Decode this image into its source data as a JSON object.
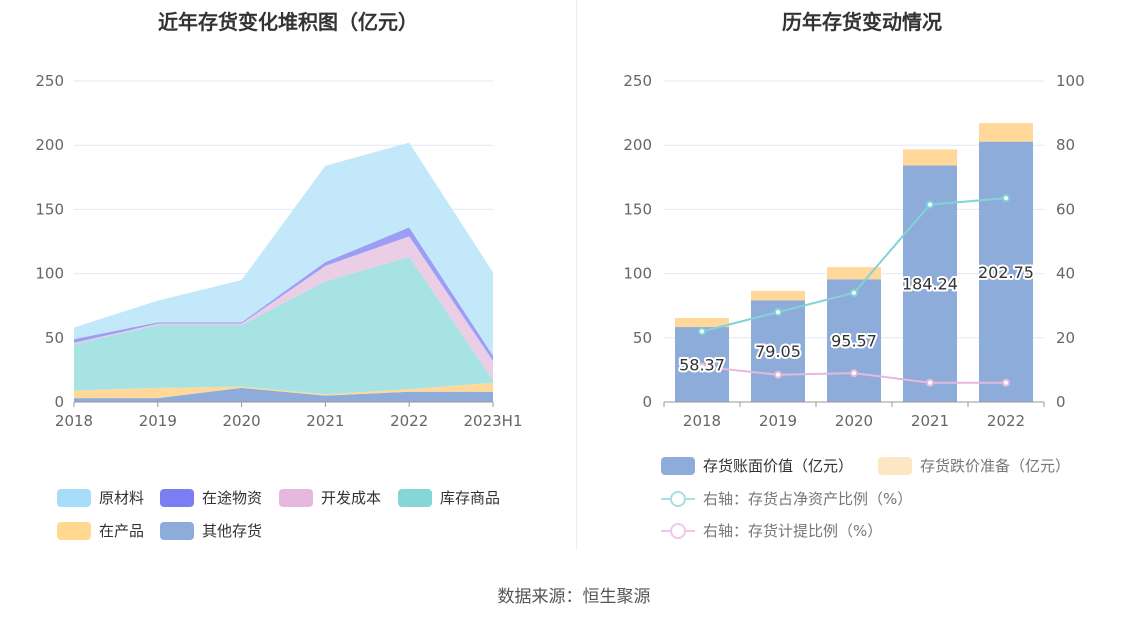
{
  "source_text": "数据来源：恒生聚源",
  "chart_data": [
    {
      "type": "area",
      "stacked": true,
      "title": "近年存货变化堆积图（亿元）",
      "categories": [
        "2018",
        "2019",
        "2020",
        "2021",
        "2022",
        "2023H1"
      ],
      "ylim": [
        0,
        250
      ],
      "yticks": [
        0,
        50,
        100,
        150,
        200,
        250
      ],
      "grid": true,
      "legend_position": "bottom",
      "series": [
        {
          "name": "其他存货",
          "color": "#8eacd9",
          "values": [
            3,
            3,
            11,
            5,
            8,
            8
          ]
        },
        {
          "name": "在产品",
          "color": "#ffd89a",
          "values": [
            6,
            8,
            1,
            1,
            2,
            7
          ]
        },
        {
          "name": "库存商品",
          "color": "#a8e3e4",
          "values": [
            36,
            49,
            48,
            88,
            103,
            2
          ]
        },
        {
          "name": "开发成本",
          "color": "#ebcde6",
          "values": [
            1,
            1,
            1,
            12,
            16,
            15
          ]
        },
        {
          "name": "在途物资",
          "color": "#9b9ef4",
          "values": [
            3,
            1,
            1,
            3,
            7,
            4
          ]
        },
        {
          "name": "原材料",
          "color": "#c3e8fa",
          "values": [
            9,
            17,
            33,
            75,
            66,
            65
          ]
        }
      ],
      "legend": [
        {
          "name": "原材料",
          "color": "#a6defa"
        },
        {
          "name": "在途物资",
          "color": "#7b7ef2"
        },
        {
          "name": "开发成本",
          "color": "#e6b8de"
        },
        {
          "name": "库存商品",
          "color": "#84d6d7"
        },
        {
          "name": "在产品",
          "color": "#ffd98f"
        },
        {
          "name": "其他存货",
          "color": "#8eacd9"
        }
      ]
    },
    {
      "type": "bar",
      "title": "历年存货变动情况",
      "categories": [
        "2018",
        "2019",
        "2020",
        "2021",
        "2022"
      ],
      "ylim": [
        0,
        250
      ],
      "yticks": [
        0,
        50,
        100,
        150,
        200,
        250
      ],
      "y2lim": [
        0,
        100
      ],
      "y2ticks": [
        0,
        20,
        40,
        60,
        80,
        100
      ],
      "grid": true,
      "legend_position": "bottom",
      "series": [
        {
          "name": "存货账面价值（亿元）",
          "type": "bar",
          "stack": "inv",
          "color": "#8eacd9",
          "values": [
            58.37,
            79.05,
            95.57,
            184.24,
            202.75
          ],
          "labels": [
            "58.37",
            "79.05",
            "95.57",
            "184.24",
            "202.75"
          ]
        },
        {
          "name": "存货跌价准备（亿元）",
          "type": "bar",
          "stack": "inv",
          "color": "#ffd89a",
          "values": [
            7,
            7.5,
            9.5,
            12.5,
            14.5
          ]
        },
        {
          "name": "右轴：存货占净资产比例（%）",
          "type": "line",
          "axis": "right",
          "color": "#82d3d6",
          "values": [
            22,
            28,
            34,
            61.5,
            63.5
          ]
        },
        {
          "name": "右轴：存货计提比例（%）",
          "type": "line",
          "axis": "right",
          "color": "#e6b8de",
          "values": [
            11,
            8.5,
            9,
            6,
            6
          ]
        }
      ],
      "legend": [
        {
          "name": "存货账面价值（亿元）",
          "kind": "box",
          "color": "#8eacd9"
        },
        {
          "name": "存货跌价准备（亿元）",
          "kind": "box",
          "color": "#fde6c3"
        },
        {
          "name": "右轴：存货占净资产比例（%）",
          "kind": "line",
          "color": "#a6e0e2"
        },
        {
          "name": "右轴：存货计提比例（%）",
          "kind": "line",
          "color": "#f0c7e8"
        }
      ]
    }
  ]
}
